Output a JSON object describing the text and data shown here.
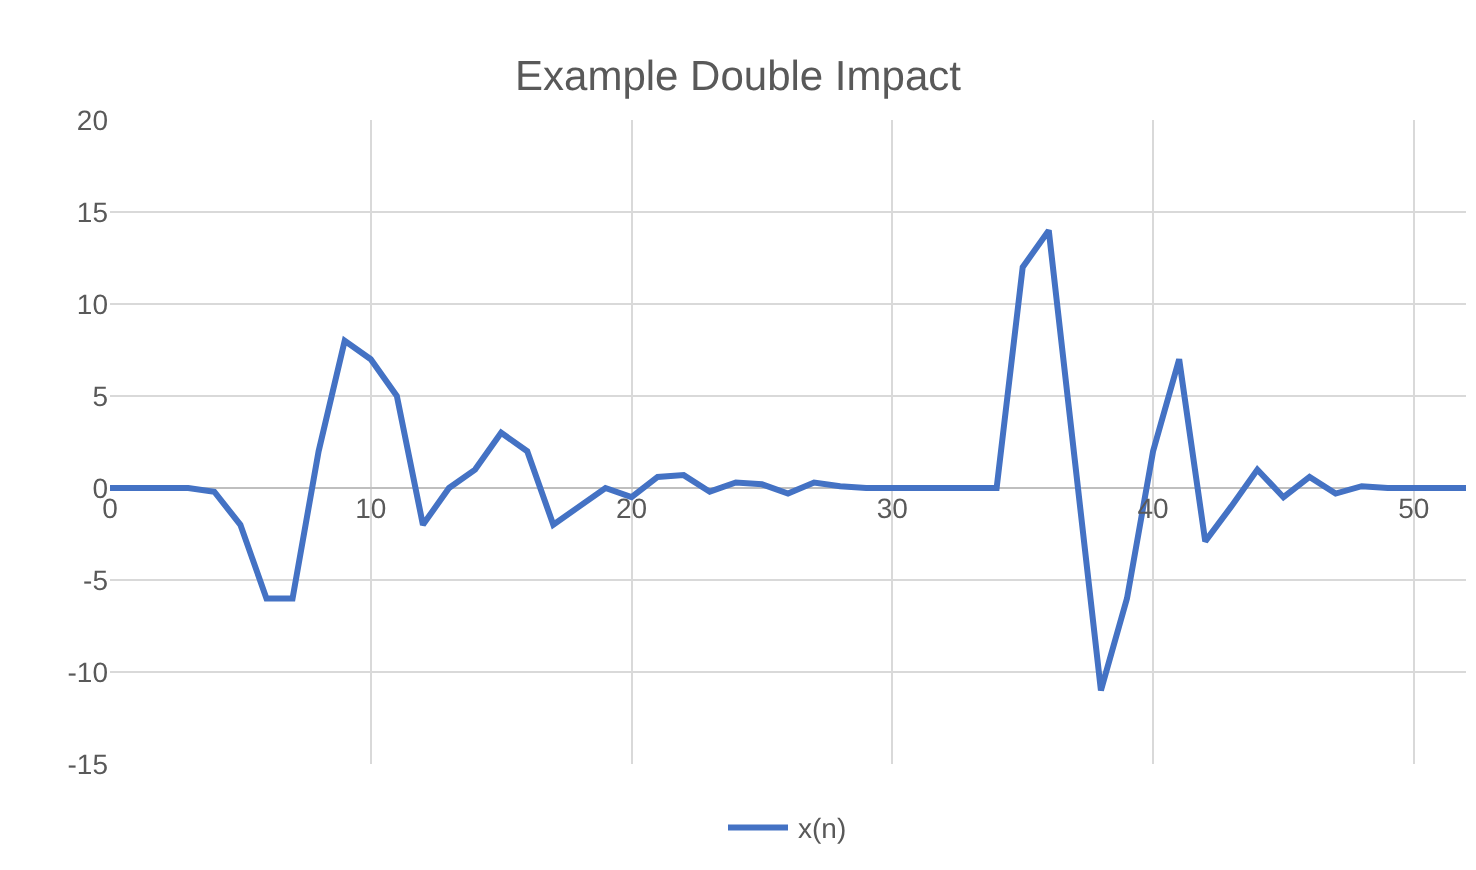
{
  "chart_data": {
    "type": "line",
    "title": "Example Double Impact",
    "x": [
      0,
      1,
      2,
      3,
      4,
      5,
      6,
      7,
      8,
      9,
      10,
      11,
      12,
      13,
      14,
      15,
      16,
      17,
      18,
      19,
      20,
      21,
      22,
      23,
      24,
      25,
      26,
      27,
      28,
      29,
      30,
      31,
      32,
      33,
      34,
      35,
      36,
      37,
      38,
      39,
      40,
      41,
      42,
      43,
      44,
      45,
      46,
      47,
      48,
      49,
      50,
      51,
      52
    ],
    "series": [
      {
        "name": "x(n)",
        "color": "#4472c4",
        "values": [
          0,
          0,
          0,
          0,
          -0.2,
          -2,
          -6,
          -6,
          2,
          8,
          7,
          5,
          -2,
          0,
          1,
          3,
          2,
          -2,
          -1,
          0,
          -0.5,
          0.6,
          0.7,
          -0.2,
          0.3,
          0.2,
          -0.3,
          0.3,
          0.1,
          0,
          0,
          0,
          0,
          0,
          0,
          12,
          14,
          1.5,
          -11,
          -6,
          2,
          7,
          -2.9,
          -1,
          1,
          -0.5,
          0.6,
          -0.3,
          0.1,
          0,
          0,
          0,
          0
        ]
      }
    ],
    "xlim": [
      0,
      52
    ],
    "xticks": [
      0,
      10,
      20,
      30,
      40,
      50
    ],
    "ylim": [
      -15,
      20
    ],
    "yticks": [
      -15,
      -10,
      -5,
      0,
      5,
      10,
      15,
      20
    ],
    "grid": true,
    "legend": "bottom",
    "marker": "none",
    "line_style": "solid"
  }
}
